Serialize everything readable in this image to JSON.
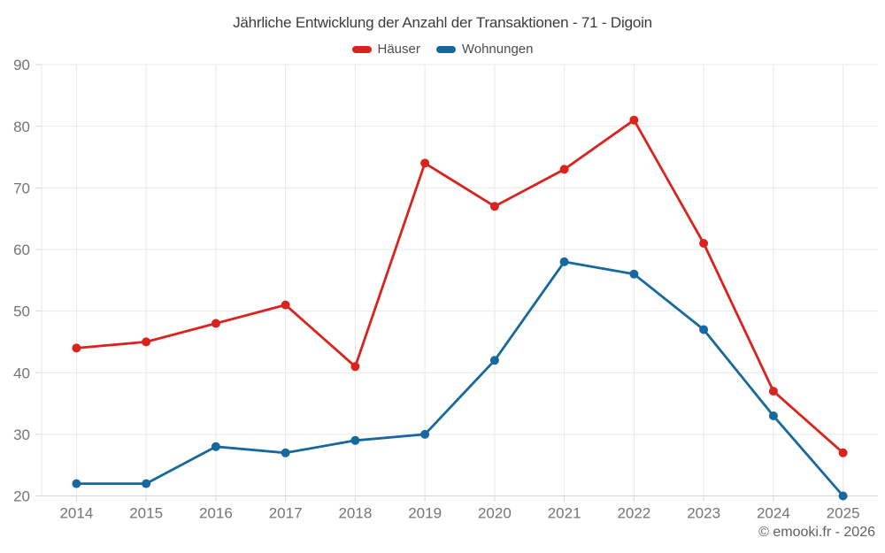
{
  "chart_data": {
    "type": "line",
    "title": "Jährliche Entwicklung der Anzahl der Transaktionen - 71 - Digoin",
    "categories": [
      "2014",
      "2015",
      "2016",
      "2017",
      "2018",
      "2019",
      "2020",
      "2021",
      "2022",
      "2023",
      "2024",
      "2025"
    ],
    "series": [
      {
        "name": "Häuser",
        "color": "#db231e",
        "values": [
          44,
          45,
          48,
          51,
          41,
          74,
          67,
          73,
          81,
          61,
          37,
          27
        ]
      },
      {
        "name": "Wohnungen",
        "color": "#16689e",
        "values": [
          22,
          22,
          28,
          27,
          29,
          30,
          42,
          58,
          56,
          47,
          33,
          20
        ]
      }
    ],
    "xlabel": "",
    "ylabel": "",
    "ylim": [
      20,
      90
    ],
    "y_ticks": [
      20,
      30,
      40,
      50,
      60,
      70,
      80,
      90
    ],
    "grid": true,
    "legend_position": "top",
    "marker_radius": 5,
    "grid_color": "#e8e8e8",
    "axis_color": "#d6d6d6",
    "tick_label_color": "#747474"
  },
  "footer": {
    "credit": "© emooki.fr - 2026"
  }
}
